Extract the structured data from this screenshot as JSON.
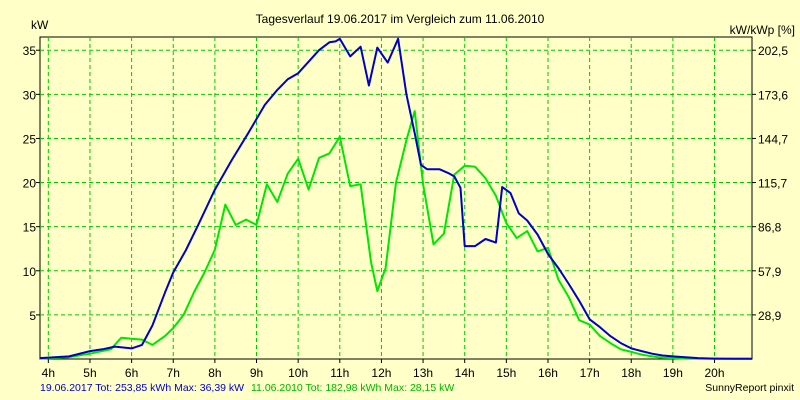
{
  "chart_data": {
    "type": "line",
    "title": "Tagesverlauf 19.06.2017 im Vergleich zum 11.06.2010",
    "ylabel": "kW",
    "y2label": "kW/kWp [%]",
    "xlim": [
      3.8,
      20.9
    ],
    "ylim": [
      0,
      36.5
    ],
    "grid": true,
    "x_ticks": [
      4,
      5,
      6,
      7,
      8,
      9,
      10,
      11,
      12,
      13,
      14,
      15,
      16,
      17,
      18,
      19,
      20
    ],
    "x_tick_labels": [
      "4h",
      "5h",
      "6h",
      "7h",
      "8h",
      "9h",
      "10h",
      "11h",
      "12h",
      "13h",
      "14h",
      "15h",
      "16h",
      "17h",
      "18h",
      "19h",
      "20h"
    ],
    "y_ticks": [
      5,
      10,
      15,
      20,
      25,
      30,
      35
    ],
    "y_tick_labels": [
      "5",
      "10",
      "15",
      "20",
      "25",
      "30",
      "35"
    ],
    "y2_ticks": [
      5,
      10,
      15,
      20,
      25,
      30,
      35
    ],
    "y2_tick_labels": [
      "28,9",
      "57,9",
      "86,8",
      "115,7",
      "144,7",
      "173,6",
      "202,5"
    ],
    "series": [
      {
        "name": "19.06.2017",
        "color": "#0000c8",
        "x": [
          3.8,
          4.5,
          5.0,
          5.3,
          5.6,
          6.0,
          6.25,
          6.5,
          6.8,
          7.0,
          7.3,
          7.6,
          8.0,
          8.4,
          8.8,
          9.2,
          9.5,
          9.75,
          10.0,
          10.25,
          10.5,
          10.75,
          10.9,
          11.0,
          11.25,
          11.5,
          11.7,
          11.9,
          12.15,
          12.4,
          12.6,
          12.8,
          12.95,
          13.1,
          13.4,
          13.6,
          13.75,
          13.9,
          14.0,
          14.25,
          14.5,
          14.75,
          14.9,
          15.1,
          15.3,
          15.5,
          15.75,
          16.0,
          16.25,
          16.5,
          16.75,
          17.0,
          17.25,
          17.5,
          17.75,
          18.0,
          18.25,
          18.5,
          18.75,
          19.0,
          19.3,
          19.6,
          20.0,
          20.5,
          20.9
        ],
        "y": [
          0.1,
          0.3,
          0.9,
          1.1,
          1.4,
          1.2,
          1.6,
          3.8,
          7.5,
          9.8,
          12.3,
          15.2,
          19.2,
          22.5,
          25.6,
          28.8,
          30.5,
          31.7,
          32.4,
          33.7,
          35.0,
          35.9,
          36.0,
          36.3,
          34.3,
          35.4,
          31.0,
          35.3,
          33.6,
          36.3,
          30.0,
          25.6,
          22.0,
          21.5,
          21.5,
          21.1,
          20.7,
          19.4,
          12.8,
          12.8,
          13.6,
          13.2,
          19.5,
          18.8,
          16.5,
          15.7,
          14.1,
          11.9,
          10.3,
          8.5,
          6.6,
          4.5,
          3.6,
          2.6,
          1.8,
          1.2,
          0.9,
          0.6,
          0.4,
          0.3,
          0.2,
          0.1,
          0.05,
          0.02,
          0.02
        ]
      },
      {
        "name": "11.06.2010",
        "color": "#00e600",
        "x": [
          3.8,
          4.5,
          5.0,
          5.5,
          5.75,
          6.0,
          6.25,
          6.5,
          6.8,
          7.0,
          7.25,
          7.5,
          7.75,
          8.0,
          8.25,
          8.5,
          8.75,
          9.0,
          9.25,
          9.5,
          9.75,
          10.0,
          10.25,
          10.5,
          10.75,
          11.0,
          11.25,
          11.5,
          11.75,
          11.9,
          12.1,
          12.35,
          12.6,
          12.8,
          13.0,
          13.25,
          13.5,
          13.75,
          14.0,
          14.25,
          14.5,
          14.75,
          15.0,
          15.25,
          15.5,
          15.75,
          16.0,
          16.25,
          16.5,
          16.75,
          17.0,
          17.25,
          17.5,
          17.75,
          18.0,
          18.25,
          18.5,
          18.75,
          19.0,
          19.3,
          19.6,
          20.0,
          20.5,
          20.9
        ],
        "y": [
          0.05,
          0.2,
          0.6,
          1.1,
          2.4,
          2.3,
          2.2,
          1.6,
          2.6,
          3.5,
          5.0,
          7.6,
          9.8,
          12.4,
          17.5,
          15.2,
          15.8,
          15.2,
          19.8,
          17.8,
          21.0,
          22.7,
          19.2,
          22.8,
          23.3,
          25.2,
          19.6,
          19.8,
          11.0,
          7.7,
          10.3,
          20.0,
          24.8,
          28.1,
          19.8,
          13.0,
          14.2,
          20.9,
          21.9,
          21.8,
          20.5,
          18.5,
          15.4,
          13.7,
          14.5,
          12.2,
          12.6,
          9.0,
          7.0,
          4.4,
          3.9,
          2.6,
          1.8,
          1.1,
          0.8,
          0.5,
          0.3,
          0.15,
          0.1,
          0.05,
          0.05,
          0.02,
          0.02,
          0.02
        ]
      }
    ]
  },
  "footer": {
    "series1_summary": "19.06.2017 Tot: 253,85 kWh Max: 36,39 kW",
    "series2_summary": "11.06.2010 Tot: 182,98 kWh Max: 28,15 kW",
    "credit": "SunnyReport pinxit"
  }
}
